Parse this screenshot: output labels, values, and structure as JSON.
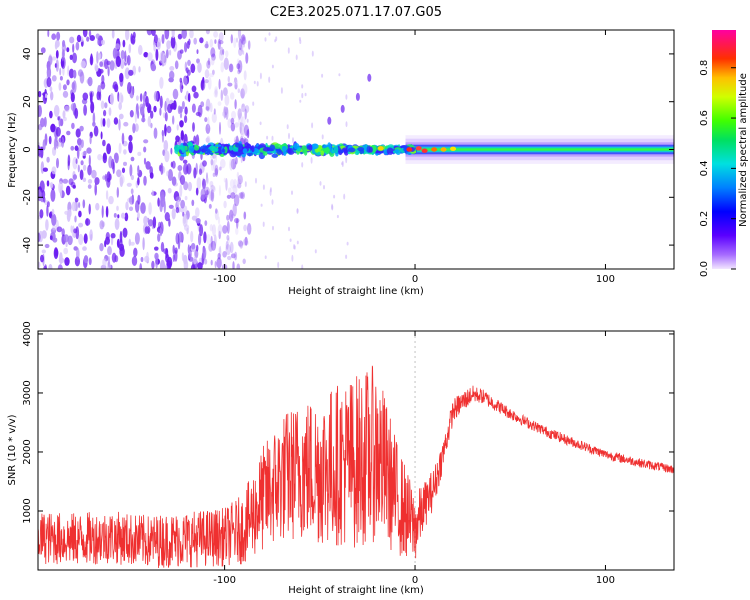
{
  "title": "C2E3.2025.071.17.07.G05",
  "chart_data": [
    {
      "type": "heatmap",
      "xlabel": "Height of straight line (km)",
      "ylabel": "Frequency (Hz)",
      "xlim": [
        -198,
        136
      ],
      "ylim": [
        -50,
        50
      ],
      "xticks": [
        -100,
        0,
        100
      ],
      "xtick_labels": [
        "-100",
        "0",
        "100"
      ],
      "yticks": [
        -40,
        -20,
        0,
        20,
        40
      ],
      "ytick_labels": [
        "-40",
        "-20",
        "0",
        "20",
        "40"
      ],
      "colorbar": {
        "label": "Normalized spectral amplitude",
        "range": [
          0.0,
          0.95
        ],
        "ticks": [
          0.0,
          0.2,
          0.4,
          0.6,
          0.8
        ],
        "tick_labels": [
          "0.0",
          "0.2",
          "0.4",
          "0.6",
          "0.8"
        ]
      },
      "features": {
        "noise_region_x": [
          -198,
          -95
        ],
        "carrier_start_x": -125,
        "carrier_end_x": 136,
        "carrier_frequency_hz": 0,
        "peak_amplitude_x": [
          -20,
          20
        ],
        "harmonic_trace": [
          [
            -45,
            12
          ],
          [
            -38,
            17
          ],
          [
            -30,
            22
          ],
          [
            -24,
            30
          ]
        ]
      },
      "colors": {
        "background": "#ffffff",
        "noise": "#7a2bf2"
      }
    },
    {
      "type": "line",
      "xlabel": "Height of straight line (km)",
      "ylabel": "SNR (10 * v/v)",
      "xlim": [
        -198,
        136
      ],
      "ylim": [
        0,
        4050
      ],
      "xticks": [
        -100,
        0,
        100
      ],
      "xtick_labels": [
        "-100",
        "0",
        "100"
      ],
      "yticks": [
        1000,
        2000,
        3000,
        4000
      ],
      "ytick_labels": [
        "1000",
        "2000",
        "3000",
        "4000"
      ],
      "series": [
        {
          "color": "#ef3030",
          "x": [
            -198,
            -180,
            -160,
            -140,
            -120,
            -100,
            -90,
            -80,
            -70,
            -60,
            -50,
            -40,
            -30,
            -20,
            -10,
            0,
            5,
            10,
            15,
            20,
            25,
            30,
            35,
            40,
            50,
            60,
            70,
            80,
            90,
            100,
            110,
            120,
            136
          ],
          "y": [
            550,
            520,
            560,
            480,
            520,
            560,
            700,
            1200,
            1550,
            1700,
            1700,
            1800,
            1850,
            2000,
            1250,
            700,
            1100,
            1400,
            2000,
            2700,
            2850,
            2980,
            2950,
            2850,
            2650,
            2480,
            2330,
            2200,
            2080,
            1960,
            1880,
            1800,
            1700
          ],
          "spread": [
            450,
            450,
            450,
            450,
            480,
            500,
            600,
            900,
            1100,
            1200,
            1300,
            1400,
            1500,
            1500,
            1000,
            600,
            400,
            350,
            250,
            200,
            180,
            150,
            130,
            120,
            100,
            90,
            90,
            85,
            80,
            80,
            80,
            75,
            75
          ]
        }
      ]
    }
  ]
}
